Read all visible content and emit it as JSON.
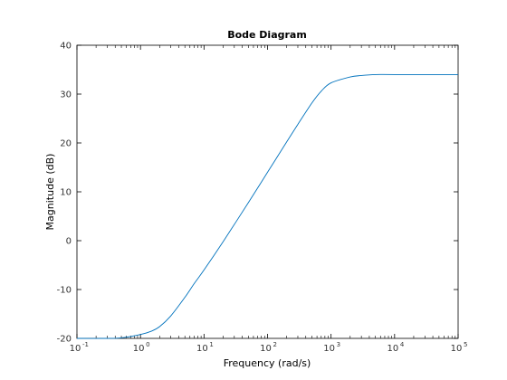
{
  "chart_data": {
    "type": "line",
    "title": "Bode Diagram",
    "xlabel": "Frequency  (rad/s)",
    "ylabel": "Magnitude (dB)",
    "xscale": "log",
    "xlim": [
      0.1,
      100000
    ],
    "ylim": [
      -20,
      40
    ],
    "x_tick_labels": [
      {
        "base": "10",
        "exp": "-1"
      },
      {
        "base": "10",
        "exp": "0"
      },
      {
        "base": "10",
        "exp": "1"
      },
      {
        "base": "10",
        "exp": "2"
      },
      {
        "base": "10",
        "exp": "3"
      },
      {
        "base": "10",
        "exp": "4"
      },
      {
        "base": "10",
        "exp": "5"
      }
    ],
    "y_tick_labels": [
      "-20",
      "-10",
      "0",
      "10",
      "20",
      "30",
      "40"
    ],
    "grid": false,
    "line_color": "#0072bd",
    "series": [
      {
        "x": [
          0.1,
          0.3,
          0.5,
          1,
          1.5,
          2,
          3,
          5,
          7,
          10,
          20,
          50,
          100,
          200,
          300,
          500,
          700,
          1000,
          2000,
          3000,
          5000,
          10000,
          100000
        ],
        "values": [
          -20,
          -20,
          -19.9,
          -19.2,
          -18.5,
          -17.6,
          -15.4,
          -11.6,
          -8.8,
          -6.0,
          -0.2,
          7.8,
          14.0,
          20.2,
          23.8,
          28.2,
          30.6,
          32.3,
          33.5,
          33.8,
          34.0,
          34.0,
          34.0
        ]
      }
    ]
  }
}
